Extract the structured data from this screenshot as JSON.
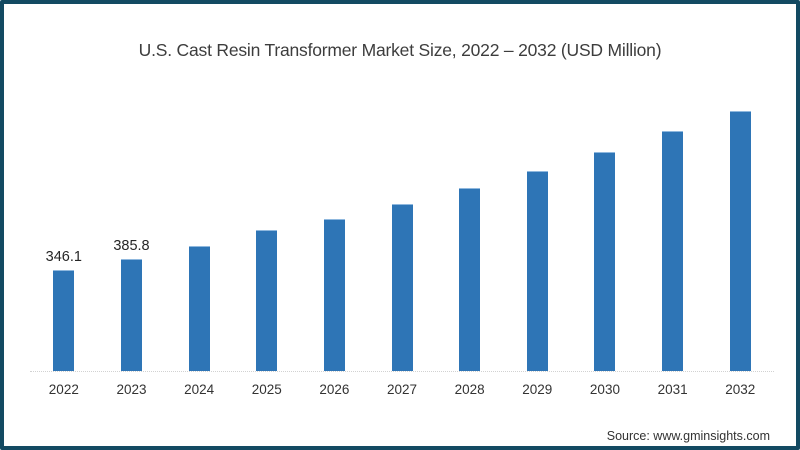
{
  "frame": {
    "border_color": "#134a62",
    "background_color": "#ffffff"
  },
  "chart_data": {
    "type": "bar",
    "title": "U.S. Cast Resin Transformer Market Size, 2022 – 2032 (USD Million)",
    "categories": [
      "2022",
      "2023",
      "2024",
      "2025",
      "2026",
      "2027",
      "2028",
      "2029",
      "2030",
      "2031",
      "2032"
    ],
    "values": [
      346.1,
      385.8,
      430,
      484,
      525,
      576,
      631,
      690,
      757,
      827,
      897
    ],
    "value_labels": [
      "346.1",
      "385.8",
      "",
      "",
      "",
      "",
      "",
      "",
      "",
      "",
      ""
    ],
    "xlabel": "",
    "ylabel": "",
    "ylim": [
      0,
      950
    ],
    "grid": false,
    "legend": false,
    "bar_color": "#2e75b6",
    "bar_edge_color": "#8fb8de",
    "axis_line_color": "#d2d2d2",
    "source": "Source: www.gminsights.com"
  }
}
